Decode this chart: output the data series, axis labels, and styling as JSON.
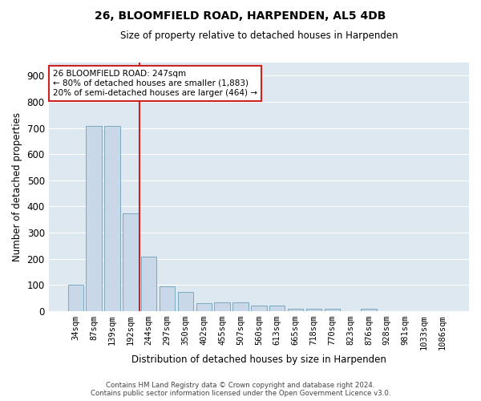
{
  "title": "26, BLOOMFIELD ROAD, HARPENDEN, AL5 4DB",
  "subtitle": "Size of property relative to detached houses in Harpenden",
  "xlabel": "Distribution of detached houses by size in Harpenden",
  "ylabel": "Number of detached properties",
  "categories": [
    "34sqm",
    "87sqm",
    "139sqm",
    "192sqm",
    "244sqm",
    "297sqm",
    "350sqm",
    "402sqm",
    "455sqm",
    "507sqm",
    "560sqm",
    "613sqm",
    "665sqm",
    "718sqm",
    "770sqm",
    "823sqm",
    "876sqm",
    "928sqm",
    "981sqm",
    "1033sqm",
    "1086sqm"
  ],
  "values": [
    100,
    707,
    707,
    375,
    207,
    96,
    73,
    30,
    32,
    32,
    20,
    20,
    10,
    8,
    10,
    0,
    10,
    0,
    0,
    0,
    0
  ],
  "bar_color": "#c8d8e8",
  "bar_edge_color": "#7aaabf",
  "vline_color": "#cc2222",
  "vline_pos": 3.5,
  "annotation_text": "26 BLOOMFIELD ROAD: 247sqm\n← 80% of detached houses are smaller (1,883)\n20% of semi-detached houses are larger (464) →",
  "annotation_box_color": "white",
  "annotation_box_edge": "#cc2222",
  "ylim": [
    0,
    950
  ],
  "yticks": [
    0,
    100,
    200,
    300,
    400,
    500,
    600,
    700,
    800,
    900
  ],
  "background_color": "#dde8f0",
  "grid_color": "white",
  "footer_line1": "Contains HM Land Registry data © Crown copyright and database right 2024.",
  "footer_line2": "Contains public sector information licensed under the Open Government Licence v3.0."
}
